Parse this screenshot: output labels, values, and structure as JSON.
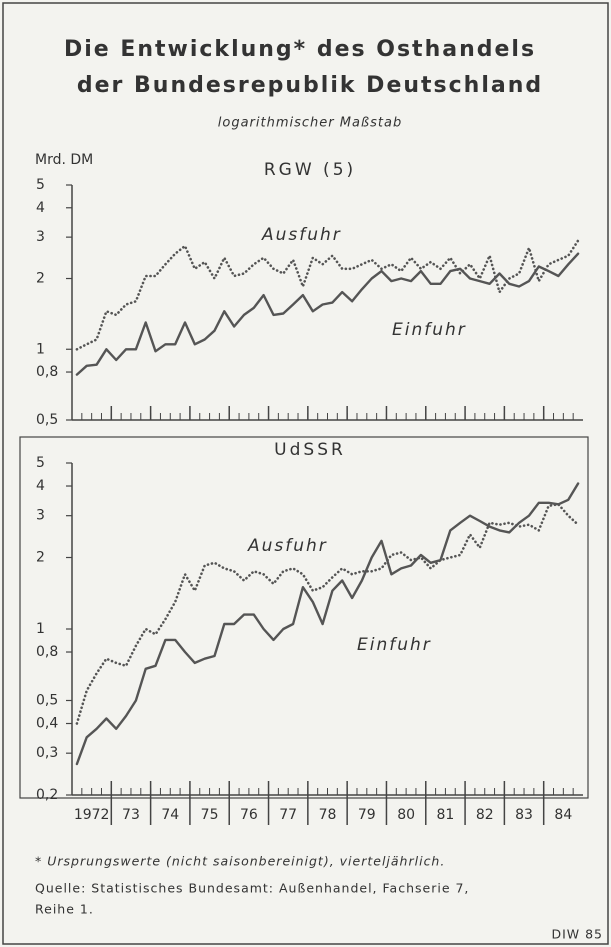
{
  "header": {
    "title": [
      "Die Entwicklung* des Osthandels",
      "der Bundesrepublik Deutschland"
    ],
    "subtitle": "logarithmischer Maßstab"
  },
  "chart_data": [
    {
      "type": "line",
      "title": "RGW (5)",
      "ylabel": "Mrd. DM",
      "yscale": "log",
      "ylim": [
        0.5,
        5
      ],
      "yticks": [
        {
          "value": 0.5,
          "label": "0,5"
        },
        {
          "value": 0.8,
          "label": "0,8"
        },
        1,
        2,
        3,
        4,
        5
      ],
      "xlim": [
        1972,
        1985
      ],
      "xticks": [
        1973,
        1974,
        1975,
        1976,
        1977,
        1978,
        1979,
        1980,
        1981,
        1982,
        1983,
        1984
      ],
      "x": [
        1972.125,
        1972.375,
        1972.625,
        1972.875,
        1973.125,
        1973.375,
        1973.625,
        1973.875,
        1974.125,
        1974.375,
        1974.625,
        1974.875,
        1975.125,
        1975.375,
        1975.625,
        1975.875,
        1976.125,
        1976.375,
        1976.625,
        1976.875,
        1977.125,
        1977.375,
        1977.625,
        1977.875,
        1978.125,
        1978.375,
        1978.625,
        1978.875,
        1979.125,
        1979.375,
        1979.625,
        1979.875,
        1980.125,
        1980.375,
        1980.625,
        1980.875,
        1981.125,
        1981.375,
        1981.625,
        1981.875,
        1982.125,
        1982.375,
        1982.625,
        1982.875,
        1983.125,
        1983.375,
        1983.625,
        1983.875,
        1984.125,
        1984.375,
        1984.625,
        1984.875
      ],
      "series": [
        {
          "name": "Ausfuhr",
          "color": "#555",
          "style": "dotted",
          "values": [
            1.0,
            1.05,
            1.1,
            1.45,
            1.4,
            1.55,
            1.6,
            2.05,
            2.05,
            2.3,
            2.55,
            2.75,
            2.2,
            2.35,
            2.0,
            2.45,
            2.05,
            2.1,
            2.3,
            2.45,
            2.2,
            2.1,
            2.4,
            1.85,
            2.45,
            2.3,
            2.5,
            2.2,
            2.2,
            2.3,
            2.4,
            2.2,
            2.3,
            2.15,
            2.45,
            2.2,
            2.35,
            2.2,
            2.45,
            2.1,
            2.3,
            2.0,
            2.5,
            1.75,
            2.0,
            2.1,
            2.7,
            1.95,
            2.3,
            2.4,
            2.5,
            2.9
          ]
        },
        {
          "name": "Einfuhr",
          "color": "#555",
          "style": "solid",
          "values": [
            0.78,
            0.85,
            0.86,
            1.0,
            0.9,
            1.0,
            1.0,
            1.3,
            0.98,
            1.05,
            1.05,
            1.3,
            1.05,
            1.1,
            1.2,
            1.45,
            1.25,
            1.4,
            1.5,
            1.7,
            1.4,
            1.42,
            1.55,
            1.7,
            1.45,
            1.55,
            1.58,
            1.75,
            1.6,
            1.8,
            2.0,
            2.15,
            1.95,
            2.0,
            1.95,
            2.15,
            1.9,
            1.9,
            2.15,
            2.2,
            2.0,
            1.95,
            1.9,
            2.1,
            1.9,
            1.85,
            1.95,
            2.25,
            2.15,
            2.05,
            2.3,
            2.55
          ]
        }
      ]
    },
    {
      "type": "line",
      "title": "UdSSR",
      "yscale": "log",
      "ylim": [
        0.2,
        5
      ],
      "yticks": [
        {
          "value": 0.2,
          "label": "0,2"
        },
        {
          "value": 0.3,
          "label": "0,3"
        },
        {
          "value": 0.4,
          "label": "0,4"
        },
        {
          "value": 0.5,
          "label": "0,5"
        },
        {
          "value": 0.8,
          "label": "0,8"
        },
        1,
        2,
        3,
        4,
        5
      ],
      "xlim": [
        1972,
        1985
      ],
      "xticks": [
        1973,
        1974,
        1975,
        1976,
        1977,
        1978,
        1979,
        1980,
        1981,
        1982,
        1983,
        1984
      ],
      "categories": [
        "1972",
        "73",
        "74",
        "75",
        "76",
        "77",
        "78",
        "79",
        "80",
        "81",
        "82",
        "83",
        "84"
      ],
      "x": [
        1972.125,
        1972.375,
        1972.625,
        1972.875,
        1973.125,
        1973.375,
        1973.625,
        1973.875,
        1974.125,
        1974.375,
        1974.625,
        1974.875,
        1975.125,
        1975.375,
        1975.625,
        1975.875,
        1976.125,
        1976.375,
        1976.625,
        1976.875,
        1977.125,
        1977.375,
        1977.625,
        1977.875,
        1978.125,
        1978.375,
        1978.625,
        1978.875,
        1979.125,
        1979.375,
        1979.625,
        1979.875,
        1980.125,
        1980.375,
        1980.625,
        1980.875,
        1981.125,
        1981.375,
        1981.625,
        1981.875,
        1982.125,
        1982.375,
        1982.625,
        1982.875,
        1983.125,
        1983.375,
        1983.625,
        1983.875,
        1984.125,
        1984.375,
        1984.625,
        1984.875
      ],
      "series": [
        {
          "name": "Ausfuhr",
          "color": "#555",
          "style": "dotted",
          "values": [
            0.4,
            0.55,
            0.65,
            0.75,
            0.72,
            0.7,
            0.85,
            1.0,
            0.95,
            1.1,
            1.3,
            1.7,
            1.45,
            1.85,
            1.9,
            1.8,
            1.75,
            1.6,
            1.75,
            1.7,
            1.55,
            1.75,
            1.8,
            1.7,
            1.45,
            1.5,
            1.65,
            1.8,
            1.7,
            1.75,
            1.75,
            1.8,
            2.05,
            2.1,
            1.95,
            2.0,
            1.8,
            1.95,
            2.0,
            2.05,
            2.5,
            2.2,
            2.8,
            2.75,
            2.8,
            2.7,
            2.75,
            2.6,
            3.3,
            3.35,
            3.0,
            2.75
          ]
        },
        {
          "name": "Einfuhr",
          "color": "#555",
          "style": "solid",
          "values": [
            0.27,
            0.35,
            0.38,
            0.42,
            0.38,
            0.43,
            0.5,
            0.68,
            0.7,
            0.9,
            0.9,
            0.8,
            0.72,
            0.75,
            0.77,
            1.05,
            1.05,
            1.15,
            1.15,
            1.0,
            0.9,
            1.0,
            1.05,
            1.5,
            1.3,
            1.05,
            1.45,
            1.6,
            1.35,
            1.6,
            2.0,
            2.35,
            1.7,
            1.8,
            1.85,
            2.05,
            1.9,
            1.95,
            2.6,
            2.8,
            3.0,
            2.85,
            2.7,
            2.6,
            2.55,
            2.8,
            3.0,
            3.4,
            3.4,
            3.35,
            3.5,
            4.1
          ]
        }
      ]
    }
  ],
  "footer": {
    "note": "* Ursprungswerte (nicht saisonbereinigt), vierteljährlich.",
    "source": [
      "Quelle: Statistisches Bundesamt: Außenhandel, Fachserie 7,",
      "Reihe 1."
    ],
    "credit": "DIW 85"
  }
}
